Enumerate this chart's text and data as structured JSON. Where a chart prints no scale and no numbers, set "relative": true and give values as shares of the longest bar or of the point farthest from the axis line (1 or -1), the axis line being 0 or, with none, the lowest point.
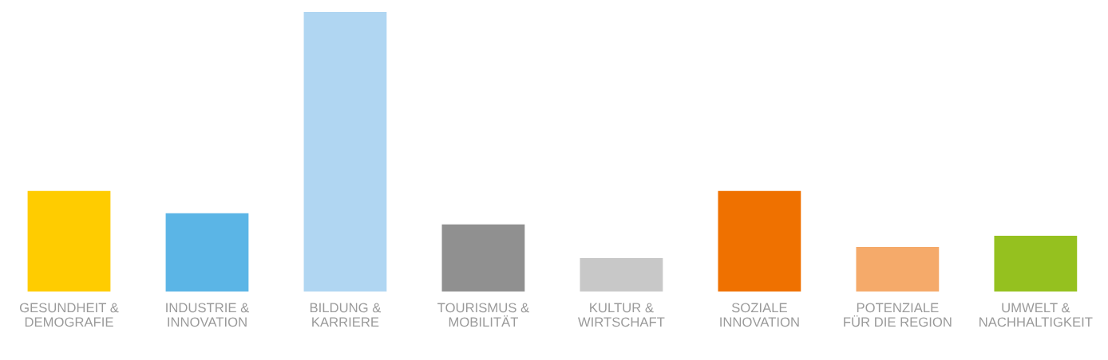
{
  "chart_data": {
    "type": "bar",
    "relative": true,
    "categories": [
      "GESUNDHEIT &\nDEMOGRAFIE",
      "INDUSTRIE &\nINNOVATION",
      "BILDUNG &\nKARRIERE",
      "TOURISMUS &\nMOBILITÄT",
      "KULTUR &\nWIRTSCHAFT",
      "SOZIALE\nINNOVATION",
      "POTENZIALE\nFÜR DIE REGION",
      "UMWELT &\nNACHHALTIGKEIT"
    ],
    "values": [
      0.36,
      0.28,
      1,
      0.24,
      0.12,
      0.36,
      0.16,
      0.2
    ],
    "colors": [
      "#ffcc00",
      "#5bb5e6",
      "#b0d6f2",
      "#909090",
      "#c8c8c8",
      "#ef7100",
      "#f5aa6a",
      "#95c11f"
    ],
    "grid": false,
    "legend": false
  }
}
